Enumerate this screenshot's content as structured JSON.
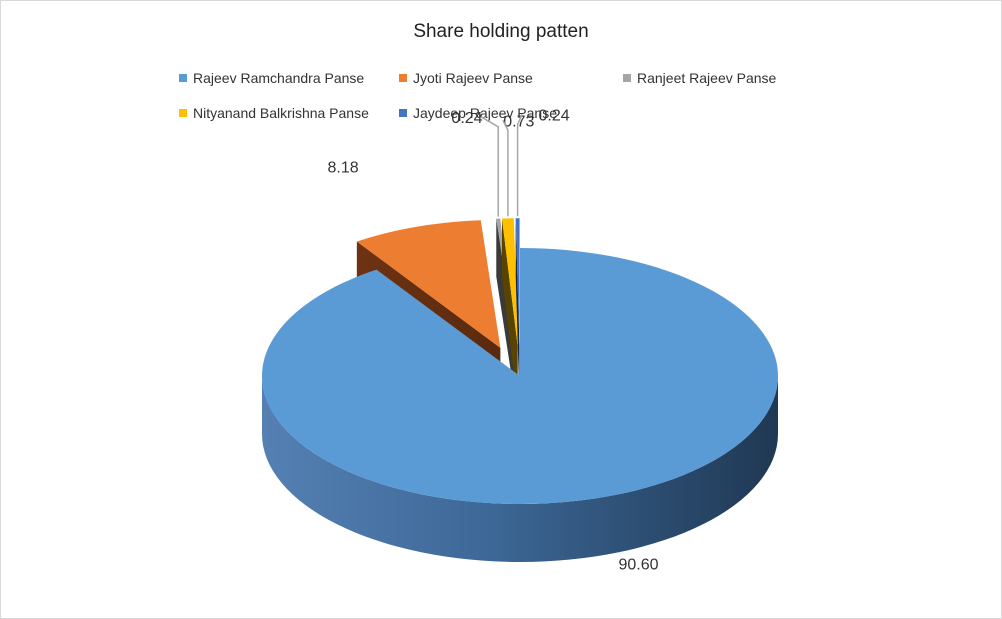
{
  "chart_data": {
    "type": "pie",
    "title": "Share holding patten",
    "legend_position": "top",
    "categories": [
      "Rajeev Ramchandra Panse",
      "Jyoti Rajeev Panse",
      "Ranjeet Rajeev Panse",
      "Nityanand Balkrishna Panse",
      "Jaydeep Rajeev Panse"
    ],
    "values": [
      90.6,
      8.18,
      0.24,
      0.73,
      0.24
    ],
    "value_labels": [
      "90.60",
      "8.18",
      "0.24",
      "0.73",
      "0.24"
    ],
    "colors": [
      "#5b9bd5",
      "#ed7d31",
      "#a5a5a5",
      "#ffc000",
      "#4472c4"
    ],
    "style": "3d-exploded"
  }
}
